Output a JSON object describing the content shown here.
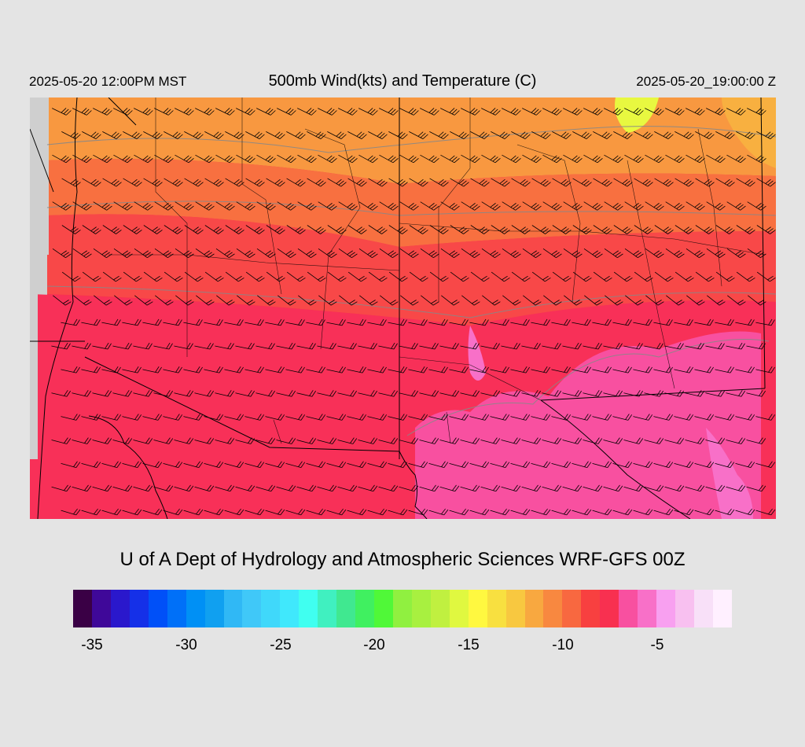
{
  "header": {
    "local_time": "2025-05-20 12:00PM MST",
    "title": "500mb Wind(kts) and Temperature (C)",
    "utc_time": "2025-05-20_19:00:00 Z"
  },
  "credit": "U of A Dept of Hydrology and Atmospheric Sciences WRF-GFS 00Z",
  "legend": {
    "colors": [
      "#3a0045",
      "#3f0899",
      "#2a18cc",
      "#1530e8",
      "#0050f8",
      "#0070f8",
      "#0090f5",
      "#10a0f0",
      "#30b8f5",
      "#40c8f8",
      "#40d8fa",
      "#40e8fc",
      "#40fff0",
      "#40f0c0",
      "#40e890",
      "#40f060",
      "#50f838",
      "#90f040",
      "#a8f040",
      "#c0f040",
      "#e0f840",
      "#fff840",
      "#f8e040",
      "#f8c840",
      "#f8a840",
      "#f88840",
      "#f86840",
      "#f84040",
      "#f83050",
      "#f850a0",
      "#f870c8",
      "#f8a0f0",
      "#f8c0f0",
      "#f8e0f8",
      "#fff0ff"
    ],
    "tick_labels": [
      "-35",
      "-30",
      "-25",
      "-20",
      "-15",
      "-10",
      "-5"
    ]
  },
  "map": {
    "bands": [
      {
        "name": "north-band",
        "color": "#f89840"
      },
      {
        "name": "upper-band",
        "color": "#f87040"
      },
      {
        "name": "middle-band",
        "color": "#f84848"
      },
      {
        "name": "lower-band",
        "color": "#f83050"
      },
      {
        "name": "south-band",
        "color": "#f83058"
      },
      {
        "name": "warm-area",
        "color": "#f850a0"
      },
      {
        "name": "hot-spots",
        "color": "#f870c8"
      },
      {
        "name": "north-yellow-spot",
        "color": "#e8f840"
      }
    ],
    "boundary_color": "#000000",
    "contour_color": "#888888",
    "barb_color": "#000000"
  }
}
